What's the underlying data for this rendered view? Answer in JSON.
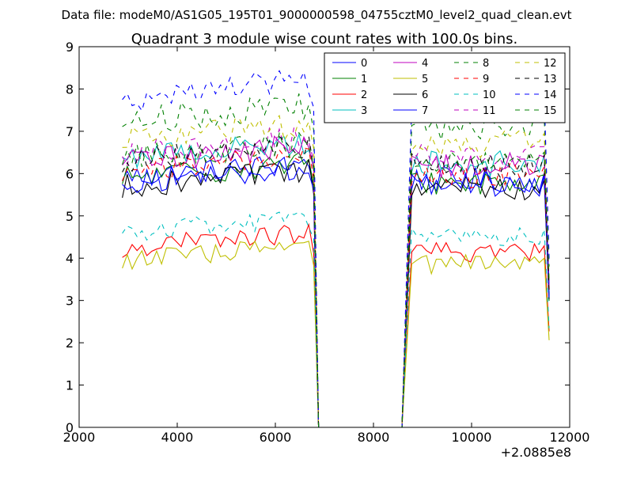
{
  "header": {
    "datafile": "Data file: modeM0/AS1G05_195T01_9000000598_04755cztM0_level2_quad_clean.evt"
  },
  "chart_data": {
    "type": "line",
    "title": "Quadrant 3 module wise count rates with 100.0s bins.",
    "xlabel": "",
    "ylabel": "",
    "xlim": [
      2000,
      12000
    ],
    "ylim": [
      0,
      9
    ],
    "x_offset_label": "+2.0885e8",
    "xticks": [
      2000,
      4000,
      6000,
      8000,
      10000,
      12000
    ],
    "xtick_labels": [
      "2000",
      "4000",
      "6000",
      "8000",
      "10000",
      "12000"
    ],
    "yticks": [
      0,
      1,
      2,
      3,
      4,
      5,
      6,
      7,
      8,
      9
    ],
    "ytick_labels": [
      "0",
      "1",
      "2",
      "3",
      "4",
      "5",
      "6",
      "7",
      "8",
      "9"
    ],
    "legend_position": "top-right",
    "x_segments": [
      [
        2880,
        6680,
        100
      ],
      [
        8780,
        11580,
        100
      ]
    ],
    "series": [
      {
        "name": "0",
        "color": "#0000ff",
        "dash": "solid",
        "level1": 5.9,
        "level2": 5.85
      },
      {
        "name": "1",
        "color": "#008000",
        "dash": "solid",
        "level1": 5.9,
        "level2": 5.8
      },
      {
        "name": "2",
        "color": "#ff0000",
        "dash": "solid",
        "level1": 4.25,
        "level2": 4.15
      },
      {
        "name": "3",
        "color": "#00bfbf",
        "dash": "solid",
        "level1": 6.4,
        "level2": 6.25
      },
      {
        "name": "4",
        "color": "#bf00bf",
        "dash": "solid",
        "level1": 6.3,
        "level2": 6.2
      },
      {
        "name": "5",
        "color": "#bfbf00",
        "dash": "solid",
        "level1": 3.95,
        "level2": 3.85
      },
      {
        "name": "6",
        "color": "#000000",
        "dash": "solid",
        "level1": 5.7,
        "level2": 5.65
      },
      {
        "name": "7",
        "color": "#0000ff",
        "dash": "solid",
        "level1": 5.8,
        "level2": 5.75
      },
      {
        "name": "8",
        "color": "#008000",
        "dash": "dashed",
        "level1": 7.25,
        "level2": 7.1
      },
      {
        "name": "9",
        "color": "#ff0000",
        "dash": "dashed",
        "level1": 6.05,
        "level2": 5.95
      },
      {
        "name": "10",
        "color": "#00bfbf",
        "dash": "dashed",
        "level1": 4.6,
        "level2": 4.5
      },
      {
        "name": "11",
        "color": "#bf00bf",
        "dash": "dashed",
        "level1": 6.5,
        "level2": 6.4
      },
      {
        "name": "12",
        "color": "#bfbf00",
        "dash": "dashed",
        "level1": 6.8,
        "level2": 6.7
      },
      {
        "name": "13",
        "color": "#000000",
        "dash": "dashed",
        "level1": 6.3,
        "level2": 6.2
      },
      {
        "name": "14",
        "color": "#0000ff",
        "dash": "dashed",
        "level1": 7.8,
        "level2": 7.6
      },
      {
        "name": "15",
        "color": "#008000",
        "dash": "dashed",
        "level1": 6.35,
        "level2": 6.25
      }
    ]
  }
}
